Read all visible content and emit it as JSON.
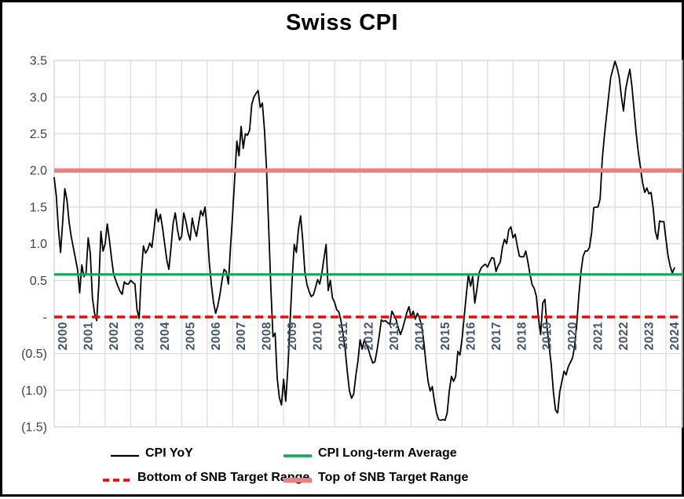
{
  "title": "Swiss CPI",
  "chart_data": {
    "type": "line",
    "title": "Swiss CPI",
    "subtitle": "",
    "grid": true,
    "legend_position": "bottom",
    "x_axis": {
      "frequency": "monthly",
      "start": "2000-01",
      "end": "2024-05",
      "labels": [
        "2000",
        "2001",
        "2002",
        "2003",
        "2004",
        "2005",
        "2006",
        "2007",
        "2008",
        "2009",
        "2010",
        "2011",
        "2012",
        "2013",
        "2014",
        "2015",
        "2016",
        "2017",
        "2018",
        "2019",
        "2020",
        "2021",
        "2022",
        "2023",
        "2024"
      ]
    },
    "y_axis": {
      "min": -1.5,
      "max": 3.5,
      "number_format": "accounting (negatives in parentheses, zero as dash)",
      "ticks": [
        {
          "value": 3.5,
          "label": "3.5"
        },
        {
          "value": 3.0,
          "label": "3.0"
        },
        {
          "value": 2.5,
          "label": "2.5"
        },
        {
          "value": 2.0,
          "label": "2.0"
        },
        {
          "value": 1.5,
          "label": "1.5"
        },
        {
          "value": 1.0,
          "label": "1.0"
        },
        {
          "value": 0.5,
          "label": "0.5"
        },
        {
          "value": 0,
          "label": "-"
        },
        {
          "value": -0.5,
          "label": "(0.5)"
        },
        {
          "value": -1.0,
          "label": "(1.0)"
        },
        {
          "value": -1.5,
          "label": "(1.5)"
        }
      ]
    },
    "series": [
      {
        "name": "CPI YoY",
        "type": "line",
        "color": "#000000",
        "width": 1.8,
        "dash": false,
        "values": [
          1.9,
          1.65,
          1.2,
          0.88,
          1.3,
          1.75,
          1.6,
          1.3,
          1.1,
          0.95,
          0.8,
          0.65,
          0.33,
          0.71,
          0.55,
          0.6,
          1.08,
          0.87,
          0.26,
          0.05,
          -0.05,
          0.44,
          1.17,
          0.9,
          1.0,
          1.27,
          1.05,
          0.8,
          0.58,
          0.5,
          0.42,
          0.35,
          0.31,
          0.48,
          0.45,
          0.45,
          0.5,
          0.47,
          0.45,
          0.1,
          -0.02,
          0.58,
          0.97,
          0.87,
          0.92,
          1.01,
          0.95,
          1.19,
          1.47,
          1.3,
          1.4,
          1.22,
          1.0,
          0.78,
          0.65,
          0.95,
          1.28,
          1.42,
          1.2,
          1.05,
          1.1,
          1.42,
          1.3,
          1.15,
          1.05,
          1.35,
          1.2,
          1.1,
          1.28,
          1.45,
          1.38,
          1.5,
          1.2,
          0.75,
          0.44,
          0.2,
          0.05,
          0.15,
          0.3,
          0.5,
          0.65,
          0.62,
          0.45,
          0.95,
          1.4,
          1.9,
          2.4,
          2.2,
          2.6,
          2.3,
          2.5,
          2.48,
          2.55,
          2.9,
          3.0,
          3.05,
          3.09,
          2.86,
          2.92,
          2.55,
          2.0,
          1.2,
          0.4,
          -0.27,
          -0.22,
          -0.84,
          -1.1,
          -1.2,
          -0.85,
          -1.15,
          -0.7,
          -0.1,
          0.5,
          0.99,
          0.88,
          1.2,
          1.38,
          1.05,
          0.62,
          0.44,
          0.35,
          0.28,
          0.3,
          0.4,
          0.51,
          0.45,
          0.6,
          0.8,
          0.99,
          0.36,
          0.5,
          0.26,
          0.2,
          0.1,
          0.07,
          -0.05,
          -0.24,
          -0.45,
          -0.75,
          -1.01,
          -1.11,
          -1.05,
          -0.8,
          -0.6,
          -0.31,
          -0.44,
          -0.31,
          -0.38,
          -0.45,
          -0.55,
          -0.63,
          -0.61,
          -0.45,
          -0.26,
          -0.04,
          -0.06,
          -0.05,
          -0.08,
          -0.1,
          0.08,
          0.02,
          -0.04,
          -0.15,
          -0.24,
          -0.16,
          -0.05,
          0.06,
          0.14,
          -0.01,
          0.08,
          -0.03,
          0.05,
          -0.02,
          -0.12,
          -0.34,
          -0.63,
          -0.88,
          -1.01,
          -0.95,
          -1.15,
          -1.31,
          -1.4,
          -1.41,
          -1.4,
          -1.41,
          -1.31,
          -1.01,
          -0.81,
          -0.88,
          -0.81,
          -0.47,
          -0.52,
          -0.3,
          0,
          0.3,
          0.58,
          0.42,
          0.55,
          0.19,
          0.38,
          0.6,
          0.67,
          0.7,
          0.72,
          0.68,
          0.75,
          0.81,
          0.8,
          0.62,
          0.7,
          0.75,
          0.95,
          1.06,
          1.0,
          1.19,
          1.23,
          1.08,
          1.13,
          0.97,
          0.83,
          0.82,
          0.82,
          0.9,
          0.75,
          0.58,
          0.44,
          0.39,
          0.28,
          -0.02,
          -0.24,
          0.19,
          0.24,
          -0.13,
          -0.4,
          -0.65,
          -1.02,
          -1.27,
          -1.31,
          -1.02,
          -0.88,
          -0.74,
          -0.79,
          -0.68,
          -0.62,
          -0.56,
          -0.4,
          -0.1,
          0.3,
          0.62,
          0.83,
          0.9,
          0.9,
          0.95,
          1.15,
          1.49,
          1.5,
          1.5,
          1.61,
          2.15,
          2.47,
          2.74,
          3.01,
          3.27,
          3.38,
          3.49,
          3.4,
          3.27,
          3.01,
          2.81,
          3.1,
          3.25,
          3.38,
          3.14,
          2.82,
          2.5,
          2.24,
          2.04,
          1.83,
          1.7,
          1.76,
          1.68,
          1.7,
          1.48,
          1.17,
          1.06,
          1.31,
          1.3,
          1.3,
          1.06,
          0.83,
          0.69,
          0.6,
          0.67
        ]
      },
      {
        "name": "CPI Long-term Average",
        "type": "constant",
        "value": 0.58,
        "color": "#00B050",
        "width": 3.2,
        "dash": false
      },
      {
        "name": "Bottom of SNB Target Range",
        "type": "constant",
        "value": 0,
        "color": "#FF0000",
        "width": 3.6,
        "dash": true
      },
      {
        "name": "Top of SNB Target Range",
        "type": "constant",
        "value": 2.0,
        "color": "#F57C7C",
        "width": 5.5,
        "dash": false
      }
    ],
    "legend": {
      "items": [
        {
          "label": "CPI YoY",
          "color": "#000000",
          "width": 2.2,
          "dash": false
        },
        {
          "label": "CPI Long-term Average",
          "color": "#00B050",
          "width": 3.4,
          "dash": false
        },
        {
          "label": "Bottom of SNB Target Range",
          "color": "#FF0000",
          "width": 3.8,
          "dash": true
        },
        {
          "label": "Top of SNB Target Range",
          "color": "#F57C7C",
          "width": 6,
          "dash": false
        }
      ]
    },
    "colors": {
      "gridline": "#D9D9D9",
      "x_tick_label": "#44546A",
      "y_tick_label": "#404040",
      "title": "#000000",
      "frame": "#000000"
    }
  }
}
